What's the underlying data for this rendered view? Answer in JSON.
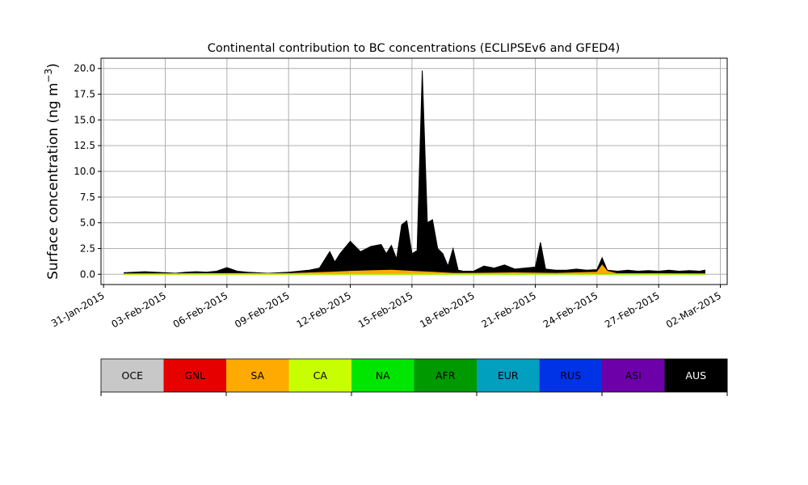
{
  "chart_data": {
    "type": "area",
    "title": "Continental contribution to BC concentrations (ECLIPSEv6 and GFED4)",
    "ylabel": "Surface concentration (ng m",
    "ylabel_sup": "−3",
    "ylabel_close": ")",
    "xlabel": "",
    "grid": true,
    "stacked": true,
    "x_axis": "date",
    "xlim": [
      "2015-01-30T21:00",
      "2015-03-02T08:00"
    ],
    "ylim": [
      -1.0,
      21.0
    ],
    "x_ticks": [
      {
        "date": "2015-01-31",
        "label": "31-Jan-2015"
      },
      {
        "date": "2015-02-03",
        "label": "03-Feb-2015"
      },
      {
        "date": "2015-02-06",
        "label": "06-Feb-2015"
      },
      {
        "date": "2015-02-09",
        "label": "09-Feb-2015"
      },
      {
        "date": "2015-02-12",
        "label": "12-Feb-2015"
      },
      {
        "date": "2015-02-15",
        "label": "15-Feb-2015"
      },
      {
        "date": "2015-02-18",
        "label": "18-Feb-2015"
      },
      {
        "date": "2015-02-21",
        "label": "21-Feb-2015"
      },
      {
        "date": "2015-02-24",
        "label": "24-Feb-2015"
      },
      {
        "date": "2015-02-27",
        "label": "27-Feb-2015"
      },
      {
        "date": "2015-03-02",
        "label": "02-Mar-2015"
      }
    ],
    "y_ticks": [
      0.0,
      2.5,
      5.0,
      7.5,
      10.0,
      12.5,
      15.0,
      17.5,
      20.0
    ],
    "y_tick_labels": [
      "0.0",
      "2.5",
      "5.0",
      "7.5",
      "10.0",
      "12.5",
      "15.0",
      "17.5",
      "20.0"
    ],
    "legend": {
      "placement": "bottom",
      "entries": [
        {
          "label": "OCE",
          "color": "#c8c8c8",
          "text_color": "#000000"
        },
        {
          "label": "GNL",
          "color": "#e60000",
          "text_color": "#000000"
        },
        {
          "label": "SA",
          "color": "#ffaa00",
          "text_color": "#000000"
        },
        {
          "label": "CA",
          "color": "#c8ff00",
          "text_color": "#000000"
        },
        {
          "label": "NA",
          "color": "#00e600",
          "text_color": "#000000"
        },
        {
          "label": "AFR",
          "color": "#009900",
          "text_color": "#000000"
        },
        {
          "label": "EUR",
          "color": "#00a0be",
          "text_color": "#000000"
        },
        {
          "label": "RUS",
          "color": "#0032e6",
          "text_color": "#000000"
        },
        {
          "label": "ASI",
          "color": "#6e00aa",
          "text_color": "#000000"
        },
        {
          "label": "AUS",
          "color": "#000000",
          "text_color": "#ffffff"
        }
      ]
    },
    "total_series": {
      "name": "AUS",
      "color": "#000000",
      "points": [
        [
          "2015-02-01T00:00",
          0.15
        ],
        [
          "2015-02-01T12:00",
          0.2
        ],
        [
          "2015-02-02T00:00",
          0.25
        ],
        [
          "2015-02-02T12:00",
          0.2
        ],
        [
          "2015-02-03T00:00",
          0.15
        ],
        [
          "2015-02-03T12:00",
          0.1
        ],
        [
          "2015-02-04T00:00",
          0.2
        ],
        [
          "2015-02-04T12:00",
          0.25
        ],
        [
          "2015-02-05T00:00",
          0.2
        ],
        [
          "2015-02-05T12:00",
          0.3
        ],
        [
          "2015-02-06T00:00",
          0.65
        ],
        [
          "2015-02-06T12:00",
          0.3
        ],
        [
          "2015-02-07T00:00",
          0.2
        ],
        [
          "2015-02-07T12:00",
          0.15
        ],
        [
          "2015-02-08T00:00",
          0.1
        ],
        [
          "2015-02-08T12:00",
          0.15
        ],
        [
          "2015-02-09T00:00",
          0.2
        ],
        [
          "2015-02-09T12:00",
          0.3
        ],
        [
          "2015-02-10T00:00",
          0.4
        ],
        [
          "2015-02-10T12:00",
          0.6
        ],
        [
          "2015-02-11T00:00",
          2.2
        ],
        [
          "2015-02-11T06:00",
          1.2
        ],
        [
          "2015-02-11T12:00",
          2.0
        ],
        [
          "2015-02-12T00:00",
          3.2
        ],
        [
          "2015-02-12T12:00",
          2.2
        ],
        [
          "2015-02-13T00:00",
          2.7
        ],
        [
          "2015-02-13T12:00",
          2.9
        ],
        [
          "2015-02-13T18:00",
          2.0
        ],
        [
          "2015-02-14T00:00",
          2.8
        ],
        [
          "2015-02-14T06:00",
          1.5
        ],
        [
          "2015-02-14T12:00",
          4.8
        ],
        [
          "2015-02-14T18:00",
          5.2
        ],
        [
          "2015-02-15T00:00",
          2.0
        ],
        [
          "2015-02-15T06:00",
          2.3
        ],
        [
          "2015-02-15T12:00",
          19.8
        ],
        [
          "2015-02-15T18:00",
          5.0
        ],
        [
          "2015-02-16T00:00",
          5.3
        ],
        [
          "2015-02-16T06:00",
          2.5
        ],
        [
          "2015-02-16T12:00",
          2.0
        ],
        [
          "2015-02-16T18:00",
          0.8
        ],
        [
          "2015-02-17T00:00",
          2.5
        ],
        [
          "2015-02-17T06:00",
          0.4
        ],
        [
          "2015-02-17T12:00",
          0.3
        ],
        [
          "2015-02-18T00:00",
          0.3
        ],
        [
          "2015-02-18T12:00",
          0.8
        ],
        [
          "2015-02-19T00:00",
          0.6
        ],
        [
          "2015-02-19T12:00",
          0.9
        ],
        [
          "2015-02-20T00:00",
          0.5
        ],
        [
          "2015-02-20T12:00",
          0.6
        ],
        [
          "2015-02-21T00:00",
          0.7
        ],
        [
          "2015-02-21T06:00",
          3.1
        ],
        [
          "2015-02-21T12:00",
          0.5
        ],
        [
          "2015-02-22T00:00",
          0.4
        ],
        [
          "2015-02-22T12:00",
          0.4
        ],
        [
          "2015-02-23T00:00",
          0.5
        ],
        [
          "2015-02-23T12:00",
          0.4
        ],
        [
          "2015-02-24T00:00",
          0.45
        ],
        [
          "2015-02-24T06:00",
          1.6
        ],
        [
          "2015-02-24T12:00",
          0.4
        ],
        [
          "2015-02-25T00:00",
          0.3
        ],
        [
          "2015-02-25T12:00",
          0.4
        ],
        [
          "2015-02-26T00:00",
          0.3
        ],
        [
          "2015-02-26T12:00",
          0.35
        ],
        [
          "2015-02-27T00:00",
          0.3
        ],
        [
          "2015-02-27T12:00",
          0.4
        ],
        [
          "2015-02-28T00:00",
          0.3
        ],
        [
          "2015-02-28T12:00",
          0.35
        ],
        [
          "2015-03-01T00:00",
          0.3
        ],
        [
          "2015-03-01T06:00",
          0.4
        ]
      ]
    },
    "sub_series": [
      {
        "name": "SA",
        "color": "#ffaa00",
        "points": [
          [
            "2015-02-01T00:00",
            0.05
          ],
          [
            "2015-02-06T00:00",
            0.08
          ],
          [
            "2015-02-09T00:00",
            0.08
          ],
          [
            "2015-02-11T00:00",
            0.2
          ],
          [
            "2015-02-12T00:00",
            0.3
          ],
          [
            "2015-02-13T00:00",
            0.35
          ],
          [
            "2015-02-14T00:00",
            0.4
          ],
          [
            "2015-02-15T00:00",
            0.3
          ],
          [
            "2015-02-16T00:00",
            0.2
          ],
          [
            "2015-02-17T00:00",
            0.1
          ],
          [
            "2015-02-18T00:00",
            0.1
          ],
          [
            "2015-02-20T00:00",
            0.15
          ],
          [
            "2015-02-22T00:00",
            0.1
          ],
          [
            "2015-02-24T00:00",
            0.2
          ],
          [
            "2015-02-24T06:00",
            0.9
          ],
          [
            "2015-02-24T12:00",
            0.3
          ],
          [
            "2015-02-25T00:00",
            0.05
          ],
          [
            "2015-03-01T06:00",
            0.05
          ]
        ]
      },
      {
        "name": "NA",
        "color": "#00e600",
        "points": [
          [
            "2015-02-01T00:00",
            0.02
          ],
          [
            "2015-02-18T00:00",
            0.05
          ],
          [
            "2015-02-27T00:00",
            0.08
          ],
          [
            "2015-03-01T06:00",
            0.03
          ]
        ]
      },
      {
        "name": "CA",
        "color": "#c8ff00",
        "points": [
          [
            "2015-02-01T00:00",
            0.01
          ],
          [
            "2015-02-20T00:00",
            0.03
          ],
          [
            "2015-03-01T06:00",
            0.01
          ]
        ]
      }
    ]
  }
}
